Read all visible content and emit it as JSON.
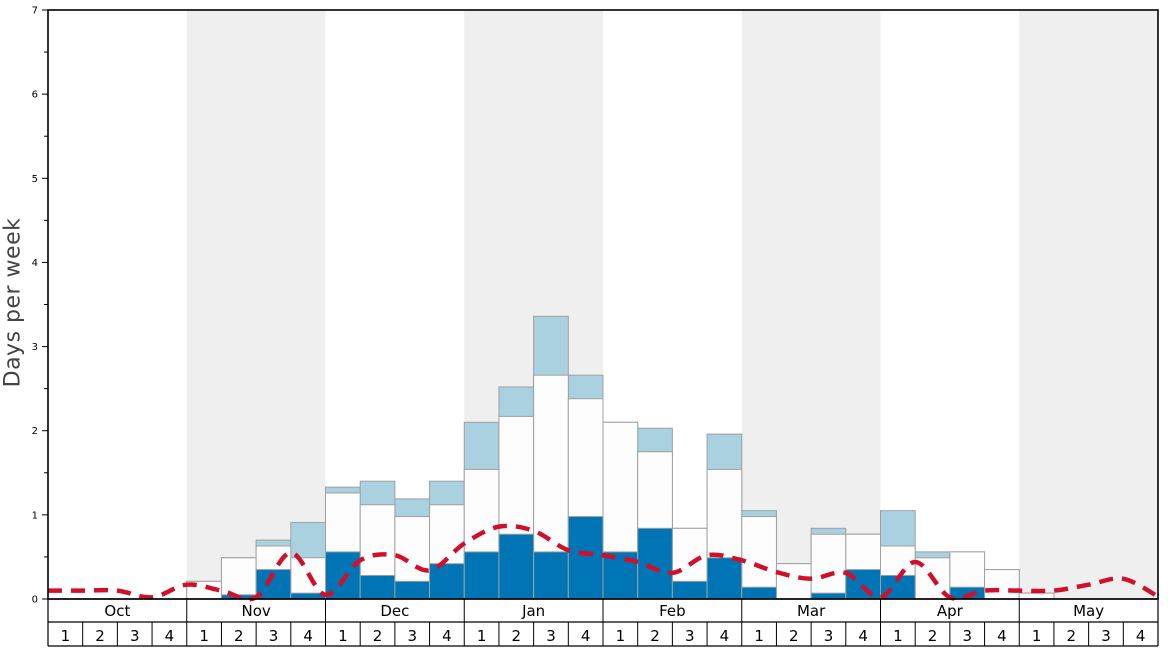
{
  "chart_data": {
    "type": "bar",
    "ylabel": "Days per week",
    "ylim": [
      0,
      7
    ],
    "y_ticks": [
      "0",
      "1",
      "2",
      "3",
      "4",
      "5",
      "6",
      "7"
    ],
    "months": [
      "Oct",
      "Nov",
      "Dec",
      "Jan",
      "Feb",
      "Mar",
      "Apr",
      "May"
    ],
    "week_labels": [
      "1",
      "2",
      "3",
      "4",
      "1",
      "2",
      "3",
      "4",
      "1",
      "2",
      "3",
      "4",
      "1",
      "2",
      "3",
      "4",
      "1",
      "2",
      "3",
      "4",
      "1",
      "2",
      "3",
      "4",
      "1",
      "2",
      "3",
      "4",
      "1",
      "2",
      "3",
      "4"
    ],
    "colors": {
      "dark_series": "#0075b5",
      "white_series": "#fdfdfd",
      "light_series": "#a9d1df",
      "line": "#d0102a",
      "band": "#efefef"
    },
    "series": [
      {
        "values": [
          0,
          0,
          0,
          0,
          0,
          0.05,
          0.35,
          0.07,
          0.56,
          0.28,
          0.21,
          0.42,
          0.56,
          0.77,
          0.56,
          0.98,
          0.56,
          0.84,
          0.21,
          0.49,
          0.14,
          0,
          0.07,
          0.35,
          0.28,
          0,
          0.14,
          0,
          0,
          0,
          0,
          0
        ]
      },
      {
        "values": [
          0,
          0,
          0,
          0,
          0.21,
          0.49,
          0.63,
          0.49,
          1.26,
          1.12,
          0.98,
          1.12,
          1.54,
          2.17,
          2.66,
          2.38,
          2.1,
          1.75,
          0.84,
          1.54,
          0.98,
          0.42,
          0.77,
          0.77,
          0.63,
          0.49,
          0.56,
          0.35,
          0.07,
          0,
          0,
          0
        ]
      },
      {
        "values": [
          0,
          0,
          0,
          0,
          0.21,
          0.49,
          0.7,
          0.91,
          1.33,
          1.4,
          1.19,
          1.4,
          2.1,
          2.52,
          3.36,
          2.66,
          2.1,
          2.03,
          0.84,
          1.96,
          1.05,
          0.42,
          0.84,
          0.77,
          1.05,
          0.56,
          0.56,
          0.35,
          0.07,
          0,
          0,
          0
        ]
      }
    ],
    "line_values": [
      0.1,
      0.1,
      0.1,
      0.02,
      0.17,
      0.1,
      0.02,
      0.55,
      0.05,
      0.46,
      0.52,
      0.34,
      0.66,
      0.86,
      0.81,
      0.58,
      0.52,
      0.44,
      0.31,
      0.52,
      0.46,
      0.32,
      0.24,
      0.31,
      0.02,
      0.44,
      0.02,
      0.1,
      0.1,
      0.1,
      0.17,
      0.24,
      0.03
    ],
    "grid": false
  }
}
